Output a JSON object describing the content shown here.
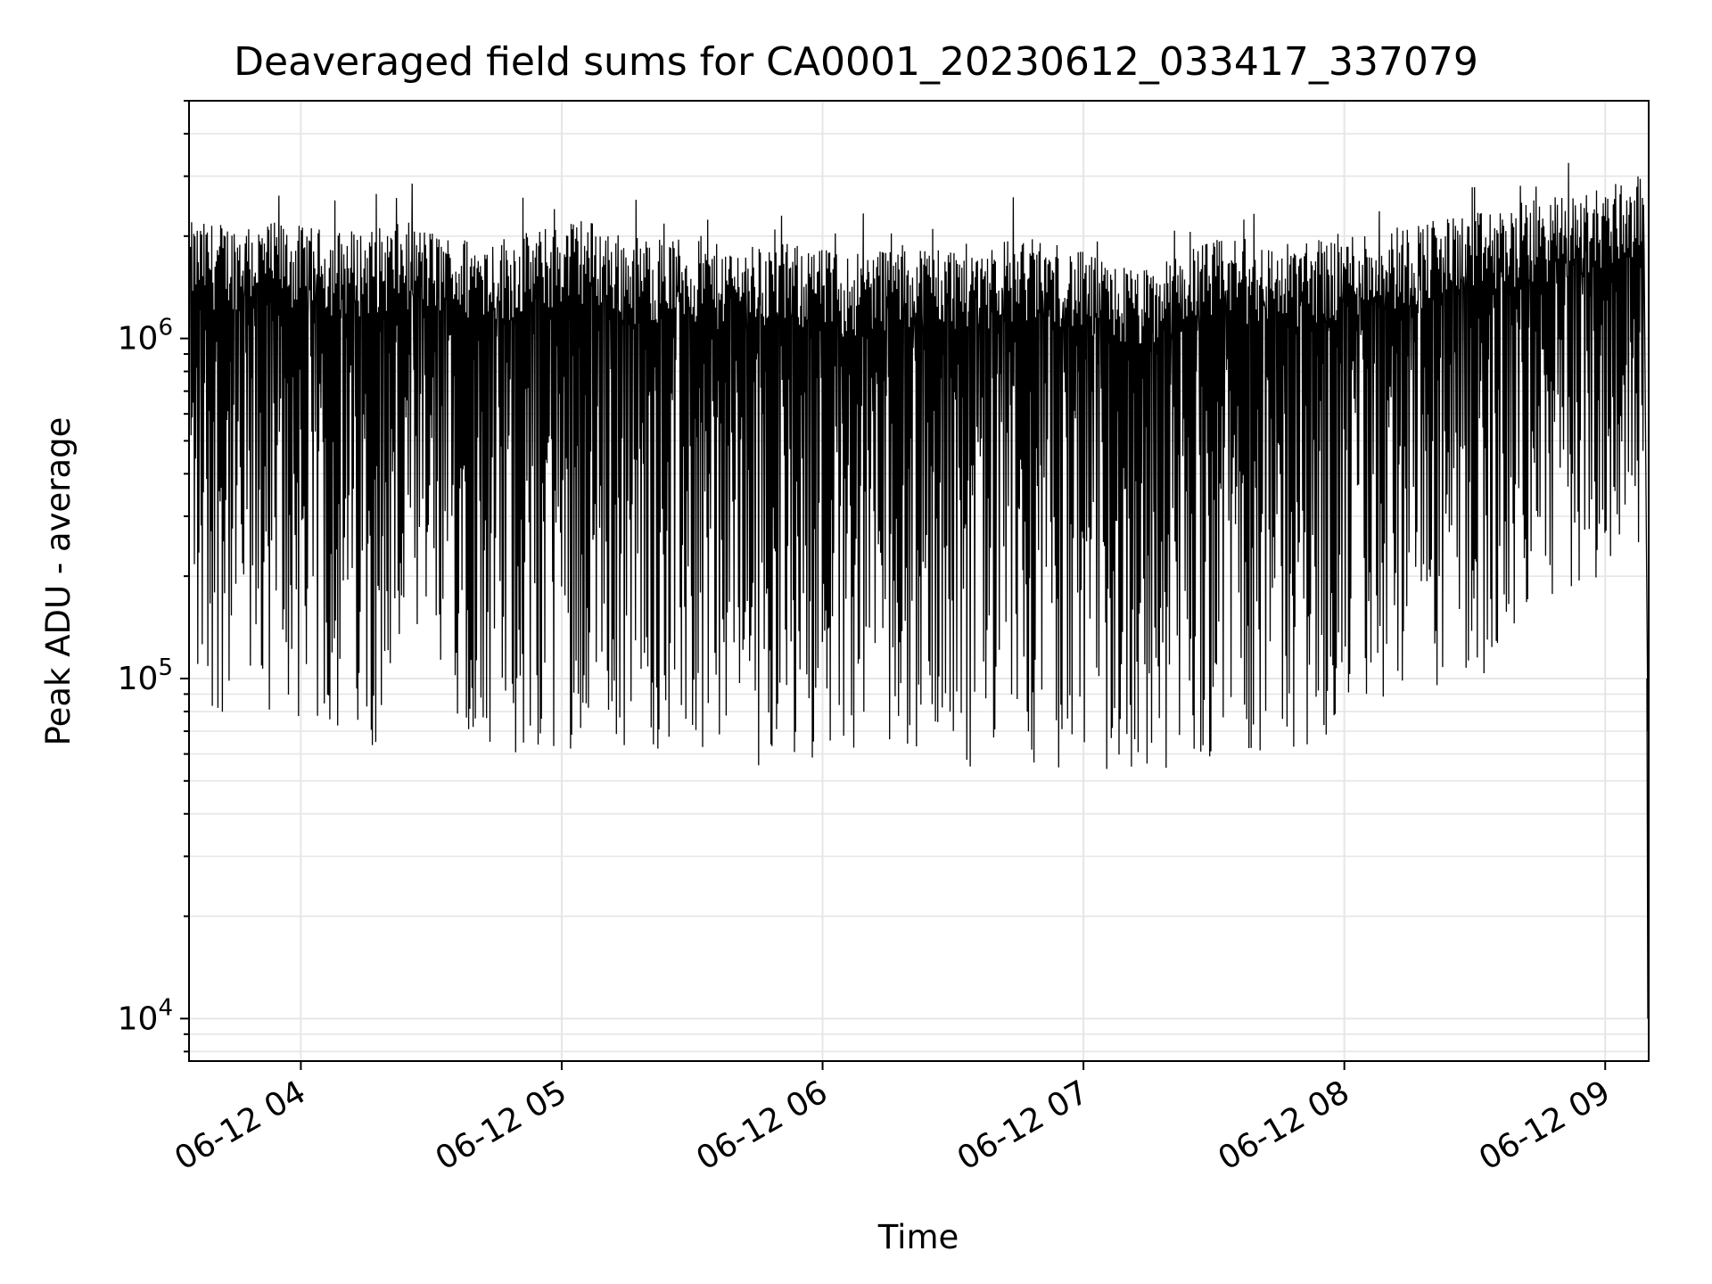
{
  "chart_data": {
    "type": "line",
    "title": "Deaveraged field sums for CA0001_20230612_033417_337079",
    "xlabel": "Time",
    "ylabel": "Peak ADU - average",
    "yscale": "log",
    "ylim": [
      7500,
      5000000
    ],
    "xlim": [
      "2023-06-12 03:34:17",
      "2023-06-12 09:10:00"
    ],
    "y_ticks": [
      {
        "value": 10000,
        "base": "10",
        "exp": "4"
      },
      {
        "value": 100000,
        "base": "10",
        "exp": "5"
      },
      {
        "value": 1000000,
        "base": "10",
        "exp": "6"
      }
    ],
    "x_ticks": [
      "06-12 04",
      "06-12 05",
      "06-12 06",
      "06-12 07",
      "06-12 08",
      "06-12 09"
    ],
    "x_tick_times": [
      "2023-06-12 04:00",
      "2023-06-12 05:00",
      "2023-06-12 06:00",
      "2023-06-12 07:00",
      "2023-06-12 08:00",
      "2023-06-12 09:00"
    ],
    "grid": true,
    "line_color": "#000000",
    "grid_color": "#e6e6e6",
    "series": [
      {
        "x": [
          "2023-06-12 03:35",
          "2023-06-12 03:45",
          "2023-06-12 03:55",
          "2023-06-12 04:05",
          "2023-06-12 04:15",
          "2023-06-12 04:25",
          "2023-06-12 04:35",
          "2023-06-12 04:45",
          "2023-06-12 04:55",
          "2023-06-12 05:05",
          "2023-06-12 05:15",
          "2023-06-12 05:25",
          "2023-06-12 05:35",
          "2023-06-12 05:45",
          "2023-06-12 05:55",
          "2023-06-12 06:05",
          "2023-06-12 06:15",
          "2023-06-12 06:25",
          "2023-06-12 06:35",
          "2023-06-12 06:45",
          "2023-06-12 06:55",
          "2023-06-12 07:05",
          "2023-06-12 07:15",
          "2023-06-12 07:25",
          "2023-06-12 07:35",
          "2023-06-12 07:45",
          "2023-06-12 07:55",
          "2023-06-12 08:05",
          "2023-06-12 08:15",
          "2023-06-12 08:25",
          "2023-06-12 08:35",
          "2023-06-12 08:45",
          "2023-06-12 08:55",
          "2023-06-12 09:05"
        ],
        "upper": [
          2200000,
          2200000,
          2200000,
          2100000,
          2100000,
          2200000,
          2000000,
          2000000,
          2100000,
          2300000,
          2000000,
          2000000,
          1900000,
          1900000,
          1900000,
          1800000,
          1900000,
          1900000,
          1900000,
          2000000,
          1900000,
          1700000,
          1600000,
          1900000,
          2000000,
          1900000,
          2000000,
          2100000,
          2200000,
          2300000,
          2400000,
          2600000,
          2700000,
          3000000
        ],
        "lower": [
          80000,
          75000,
          70000,
          65000,
          60000,
          80000,
          75000,
          58000,
          55000,
          65000,
          62000,
          58000,
          55000,
          55000,
          57000,
          60000,
          62000,
          56000,
          55000,
          55000,
          54000,
          50000,
          50000,
          55000,
          62000,
          60000,
          62000,
          75000,
          80000,
          85000,
          110000,
          150000,
          180000,
          250000
        ]
      }
    ]
  }
}
